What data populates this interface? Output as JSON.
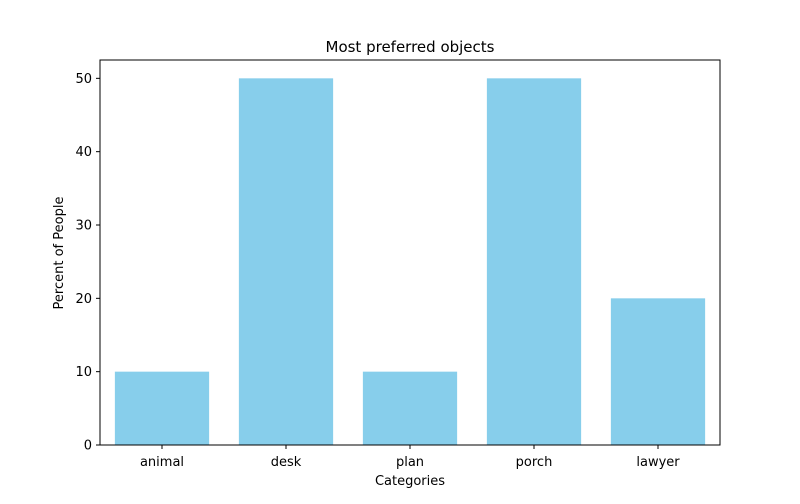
{
  "chart_data": {
    "type": "bar",
    "title": "Most preferred objects",
    "xlabel": "Categories",
    "ylabel": "Percent of People",
    "categories": [
      "animal",
      "desk",
      "plan",
      "porch",
      "lawyer"
    ],
    "values": [
      10,
      50,
      10,
      50,
      20
    ],
    "ylim": [
      0,
      52.5
    ],
    "yticks": [
      0,
      10,
      20,
      30,
      40,
      50
    ],
    "bar_color": "#87CEEB",
    "grid": false,
    "legend": "none"
  }
}
